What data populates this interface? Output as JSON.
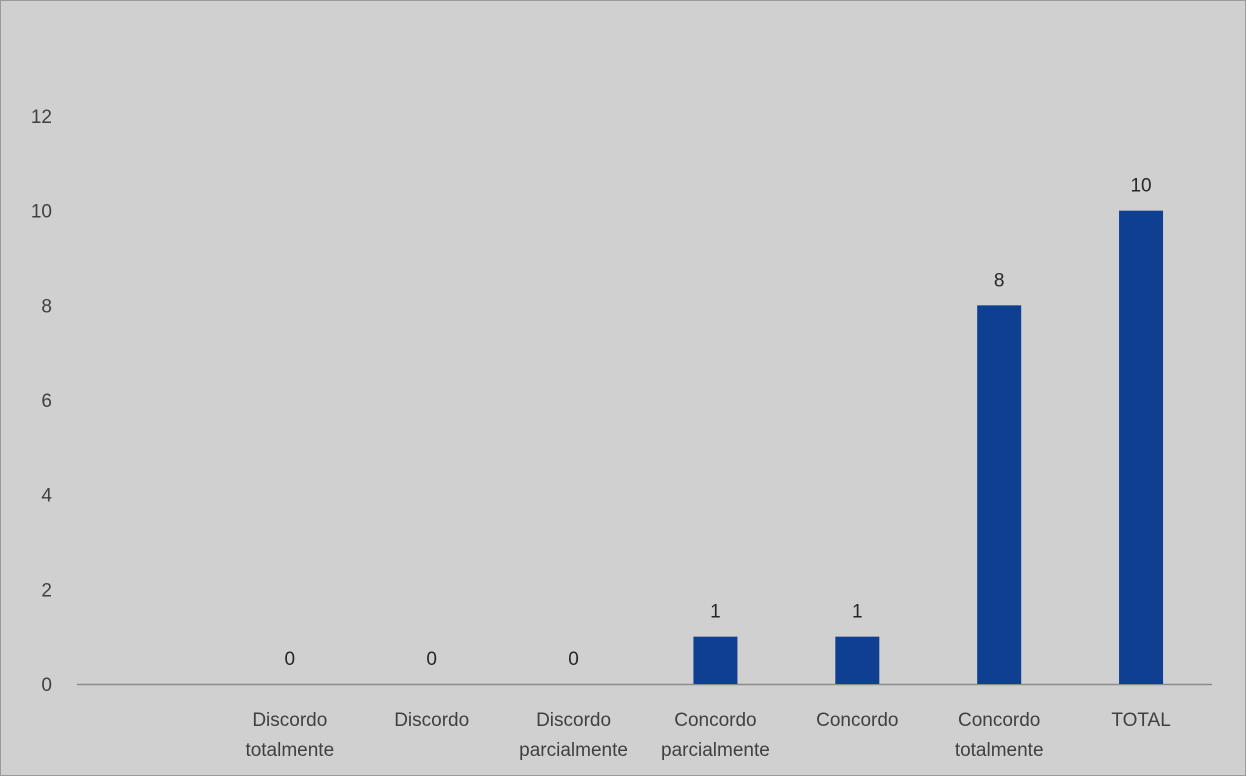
{
  "chart_data": {
    "type": "bar",
    "categories": [
      "",
      "Discordo totalmente",
      "Discordo",
      "Discordo parcialmente",
      "Concordo parcialmente",
      "Concordo",
      "Concordo totalmente",
      "TOTAL"
    ],
    "category_lines": [
      [],
      [
        "Discordo",
        "totalmente"
      ],
      [
        "Discordo"
      ],
      [
        "Discordo",
        "parcialmente"
      ],
      [
        "Concordo",
        "parcialmente"
      ],
      [
        "Concordo"
      ],
      [
        "Concordo",
        "totalmente"
      ],
      [
        "TOTAL"
      ]
    ],
    "values": [
      null,
      0,
      0,
      0,
      1,
      1,
      8,
      10
    ],
    "data_labels": [
      "",
      "0",
      "0",
      "0",
      "1",
      "1",
      "8",
      "10"
    ],
    "ylim": [
      0,
      12
    ],
    "yticks": [
      0,
      2,
      4,
      6,
      8,
      10,
      12
    ],
    "bar_color": "#0f3f91",
    "background_color": "#d0d0d0",
    "axis_color": "#8c8c8c",
    "grid": false,
    "legend": "none",
    "title": "",
    "xlabel": "",
    "ylabel": ""
  }
}
